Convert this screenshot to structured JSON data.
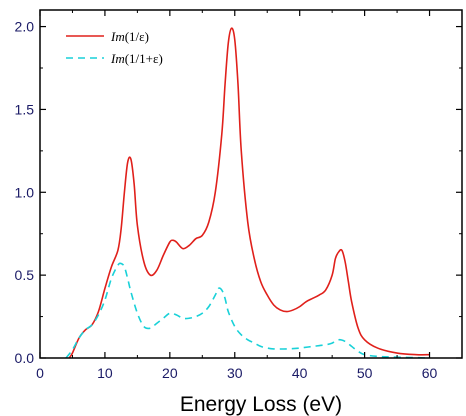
{
  "chart_data": {
    "type": "line",
    "xlabel": "Energy Loss (eV)",
    "ylabel": "",
    "xlim": [
      0,
      65
    ],
    "ylim": [
      0,
      2.1
    ],
    "x_ticks": [
      0,
      10,
      20,
      30,
      40,
      50,
      60
    ],
    "x_tick_labels": [
      "0",
      "10",
      "20",
      "30",
      "40",
      "50",
      "60"
    ],
    "y_ticks": [
      0,
      0.5,
      1,
      1.5,
      2
    ],
    "y_tick_labels": [
      "0.0",
      "0.5",
      "1.0",
      "1.5",
      "2.0"
    ],
    "grid": false,
    "legend_position": "top-left",
    "series": [
      {
        "name": "Im(1/ε)",
        "legend_italic": "Im",
        "legend_rest": "(1/ε)",
        "color": "#e0201b",
        "line_style": "solid",
        "x": [
          4.5,
          5,
          6,
          7,
          8,
          9,
          10,
          11,
          12,
          12.5,
          13,
          13.5,
          14,
          14.5,
          15,
          16,
          17,
          18,
          19,
          20,
          20.5,
          21,
          22,
          23,
          24,
          25,
          26,
          27,
          28,
          28.5,
          29,
          29.5,
          30,
          30.5,
          31,
          32,
          33,
          34,
          35,
          36,
          37,
          38,
          39,
          40,
          41,
          42,
          43,
          44,
          45,
          45.5,
          46,
          46.5,
          47,
          47.5,
          48,
          49,
          50,
          52,
          55,
          58,
          60
        ],
        "y": [
          0,
          0.03,
          0.12,
          0.17,
          0.2,
          0.28,
          0.42,
          0.55,
          0.65,
          0.78,
          1.0,
          1.18,
          1.2,
          1.05,
          0.8,
          0.58,
          0.5,
          0.53,
          0.62,
          0.7,
          0.71,
          0.7,
          0.66,
          0.68,
          0.72,
          0.74,
          0.82,
          1.0,
          1.35,
          1.65,
          1.9,
          1.99,
          1.92,
          1.65,
          1.25,
          0.82,
          0.6,
          0.46,
          0.38,
          0.32,
          0.29,
          0.28,
          0.29,
          0.31,
          0.34,
          0.36,
          0.38,
          0.41,
          0.5,
          0.6,
          0.64,
          0.65,
          0.58,
          0.46,
          0.34,
          0.18,
          0.11,
          0.06,
          0.03,
          0.02,
          0.02
        ]
      },
      {
        "name": "Im(1/1+ε)",
        "legend_italic": "Im",
        "legend_rest": "(1/1+ε)",
        "color": "#19d1d8",
        "line_style": "dashed",
        "x": [
          4,
          5,
          6,
          7,
          8,
          9,
          10,
          11,
          12,
          12.5,
          13,
          13.5,
          14,
          15,
          16,
          17,
          18,
          19,
          20,
          21,
          22,
          23,
          24,
          25,
          26,
          27,
          27.5,
          28,
          28.5,
          29,
          30,
          31,
          32,
          33,
          34,
          35,
          36,
          38,
          40,
          42,
          44,
          45,
          46,
          47,
          48,
          49,
          50,
          52,
          55,
          60
        ],
        "y": [
          0,
          0.05,
          0.12,
          0.17,
          0.2,
          0.26,
          0.35,
          0.48,
          0.56,
          0.57,
          0.55,
          0.48,
          0.4,
          0.27,
          0.19,
          0.18,
          0.21,
          0.24,
          0.27,
          0.26,
          0.24,
          0.24,
          0.25,
          0.27,
          0.31,
          0.38,
          0.42,
          0.41,
          0.36,
          0.28,
          0.19,
          0.14,
          0.11,
          0.09,
          0.07,
          0.06,
          0.055,
          0.055,
          0.06,
          0.07,
          0.08,
          0.09,
          0.11,
          0.1,
          0.07,
          0.04,
          0.02,
          0.01,
          0.005,
          0
        ]
      }
    ]
  }
}
